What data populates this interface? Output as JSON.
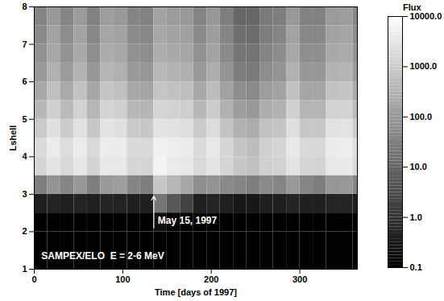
{
  "chart_data": {
    "type": "heatmap",
    "x_label": "Time [days of 1997]",
    "y_label": "Lshell",
    "xlim": [
      0,
      365
    ],
    "xticks": [
      0,
      100,
      200,
      300
    ],
    "ylim": [
      1,
      8
    ],
    "yticks": [
      1,
      2,
      3,
      4,
      5,
      6,
      7,
      8
    ],
    "x_edges": [
      0,
      15,
      30,
      45,
      60,
      75,
      90,
      105,
      120,
      135,
      150,
      165,
      180,
      195,
      210,
      225,
      240,
      255,
      270,
      285,
      300,
      315,
      330,
      345,
      360,
      365
    ],
    "y_edges": [
      1,
      2,
      2.5,
      3,
      3.5,
      4,
      4.5,
      5,
      5.5,
      6,
      6.5,
      7,
      7.5,
      8
    ],
    "cells": [
      [
        0.1,
        0.1,
        0.1,
        0.1,
        0.1,
        0.1,
        0.1,
        0.1,
        0.1,
        0.1,
        0.1,
        0.1,
        0.1,
        0.1,
        0.1,
        0.1,
        0.1,
        0.1,
        0.1,
        0.1,
        0.1,
        0.1,
        0.1,
        0.1,
        0.1
      ],
      [
        0.1,
        0.1,
        0.1,
        0.1,
        0.1,
        0.1,
        0.1,
        0.1,
        0.1,
        0.2,
        0.1,
        0.1,
        0.1,
        0.1,
        0.1,
        0.1,
        0.1,
        0.1,
        0.1,
        0.1,
        0.1,
        0.1,
        0.1,
        0.1,
        0.1
      ],
      [
        0.4,
        0.5,
        0.4,
        0.5,
        0.4,
        0.5,
        0.5,
        0.4,
        0.4,
        20,
        5,
        2,
        0.4,
        0.5,
        0.4,
        0.3,
        0.3,
        0.4,
        0.4,
        0.5,
        0.4,
        0.4,
        0.5,
        0.5,
        0.4
      ],
      [
        30,
        80,
        40,
        90,
        30,
        100,
        120,
        40,
        30,
        800,
        400,
        200,
        60,
        80,
        50,
        40,
        30,
        50,
        40,
        100,
        40,
        30,
        90,
        100,
        40
      ],
      [
        1500,
        3000,
        1800,
        3200,
        1400,
        3500,
        3500,
        1600,
        1500,
        6000,
        4000,
        3500,
        1800,
        3000,
        1500,
        800,
        600,
        1200,
        1300,
        3000,
        1500,
        1400,
        3500,
        3800,
        1800
      ],
      [
        2000,
        4000,
        2200,
        4000,
        1800,
        4500,
        4200,
        2000,
        1800,
        5000,
        4500,
        4000,
        2000,
        3500,
        1600,
        700,
        500,
        1200,
        1500,
        3800,
        1800,
        1700,
        4200,
        4500,
        2200
      ],
      [
        900,
        2500,
        1000,
        2600,
        800,
        2800,
        2500,
        900,
        800,
        3000,
        2700,
        2400,
        900,
        2200,
        700,
        300,
        250,
        600,
        700,
        2400,
        800,
        800,
        2600,
        2800,
        1000
      ],
      [
        400,
        1200,
        450,
        1300,
        380,
        1400,
        1200,
        400,
        350,
        1500,
        1300,
        1100,
        400,
        1000,
        300,
        120,
        100,
        250,
        300,
        1200,
        350,
        350,
        1300,
        1400,
        450
      ],
      [
        200,
        600,
        220,
        650,
        180,
        700,
        600,
        200,
        170,
        700,
        650,
        550,
        200,
        500,
        150,
        60,
        50,
        120,
        150,
        600,
        180,
        170,
        650,
        700,
        220
      ],
      [
        100,
        300,
        110,
        320,
        90,
        350,
        300,
        100,
        90,
        400,
        320,
        280,
        100,
        250,
        80,
        30,
        25,
        60,
        80,
        300,
        90,
        90,
        320,
        350,
        110
      ],
      [
        70,
        200,
        75,
        210,
        60,
        230,
        200,
        70,
        60,
        250,
        210,
        180,
        70,
        160,
        50,
        20,
        18,
        40,
        55,
        200,
        60,
        60,
        210,
        230,
        75
      ],
      [
        50,
        150,
        55,
        160,
        45,
        170,
        150,
        50,
        45,
        200,
        160,
        140,
        50,
        120,
        40,
        15,
        14,
        30,
        40,
        150,
        45,
        45,
        160,
        170,
        55
      ],
      [
        40,
        100,
        42,
        110,
        35,
        120,
        100,
        40,
        35,
        150,
        110,
        100,
        40,
        90,
        30,
        10,
        10,
        25,
        30,
        100,
        35,
        35,
        110,
        120,
        42
      ]
    ],
    "colorbar": {
      "label": "Flux",
      "range": [
        0.1,
        10000
      ],
      "ticks": [
        0.1,
        {
          "value": 1,
          "label": "1.0"
        },
        {
          "value": 10,
          "label": "10.0"
        },
        {
          "value": 100,
          "label": "100.0"
        },
        {
          "value": 1000,
          "label": "1000.0"
        },
        {
          "value": 10000,
          "label": "10000.0"
        }
      ]
    },
    "annotations": [
      {
        "text": "May 15, 1997",
        "x": 135,
        "y": 2.3,
        "arrow_from": [
          135,
          2.1
        ],
        "arrow_to": [
          135,
          2.95
        ]
      },
      {
        "text": "SAMPEX/ELO  E = 2-6 MeV",
        "x": 8,
        "y": 1.35
      }
    ]
  }
}
